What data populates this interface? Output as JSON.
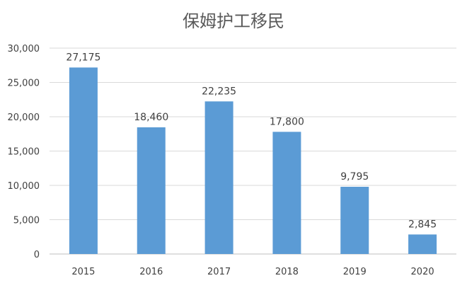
{
  "chart_data": {
    "type": "bar",
    "title": "保姆护工移民",
    "categories": [
      "2015",
      "2016",
      "2017",
      "2018",
      "2019",
      "2020"
    ],
    "values": [
      27175,
      18460,
      22235,
      17800,
      9795,
      2845
    ],
    "data_labels": [
      "27,175",
      "18,460",
      "22,235",
      "17,800",
      "9,795",
      "2,845"
    ],
    "ylim": [
      0,
      30000
    ],
    "yticks": [
      0,
      5000,
      10000,
      15000,
      20000,
      25000,
      30000
    ],
    "ytick_labels": [
      "0",
      "5,000",
      "10,000",
      "15,000",
      "20,000",
      "25,000",
      "30,000"
    ],
    "grid": true,
    "legend": "none",
    "colors": {
      "bar": "#5b9bd5"
    }
  }
}
